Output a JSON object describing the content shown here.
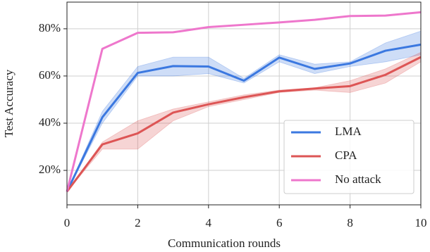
{
  "chart_data": {
    "type": "line",
    "x_label": "Communication rounds",
    "y_label": "Test Accuracy",
    "x": [
      0,
      1,
      2,
      3,
      4,
      5,
      6,
      7,
      8,
      9,
      10
    ],
    "xlim": [
      0,
      10
    ],
    "xticks": [
      0,
      2,
      4,
      6,
      8,
      10
    ],
    "ylim": [
      5.4,
      91.3
    ],
    "yticks": [
      {
        "value": 20,
        "label": "20%"
      },
      {
        "value": 40,
        "label": "40%"
      },
      {
        "value": 60,
        "label": "60%"
      },
      {
        "value": 80,
        "label": "80%"
      }
    ],
    "grid": true,
    "legend": "lower right",
    "series": [
      {
        "name": "LMA",
        "color": "#3b78e0",
        "values": [
          11,
          42.5,
          61.3,
          64.2,
          64.0,
          58.0,
          67.8,
          63.0,
          65.3,
          70.7,
          73.3
        ],
        "lower": [
          11,
          40,
          60,
          60,
          61,
          57,
          66,
          61,
          64,
          66,
          69
        ],
        "upper": [
          11,
          45,
          64,
          68,
          68,
          59,
          69,
          65,
          66,
          74,
          79
        ]
      },
      {
        "name": "CPA",
        "color": "#dd5555",
        "values": [
          11,
          31,
          35.7,
          44.5,
          48,
          51,
          53.5,
          54.7,
          55.7,
          60.5,
          68
        ],
        "lower": [
          11,
          29,
          29,
          41,
          47,
          50,
          53,
          54,
          53,
          57,
          66
        ],
        "upper": [
          11,
          32,
          41,
          46,
          49,
          52,
          54,
          55,
          58,
          63,
          70
        ]
      },
      {
        "name": "No attack",
        "color": "#ee77cc",
        "values": [
          11,
          71.5,
          78.3,
          78.5,
          80.7,
          81.7,
          82.7,
          83.8,
          85.4,
          85.6,
          87
        ]
      }
    ]
  }
}
